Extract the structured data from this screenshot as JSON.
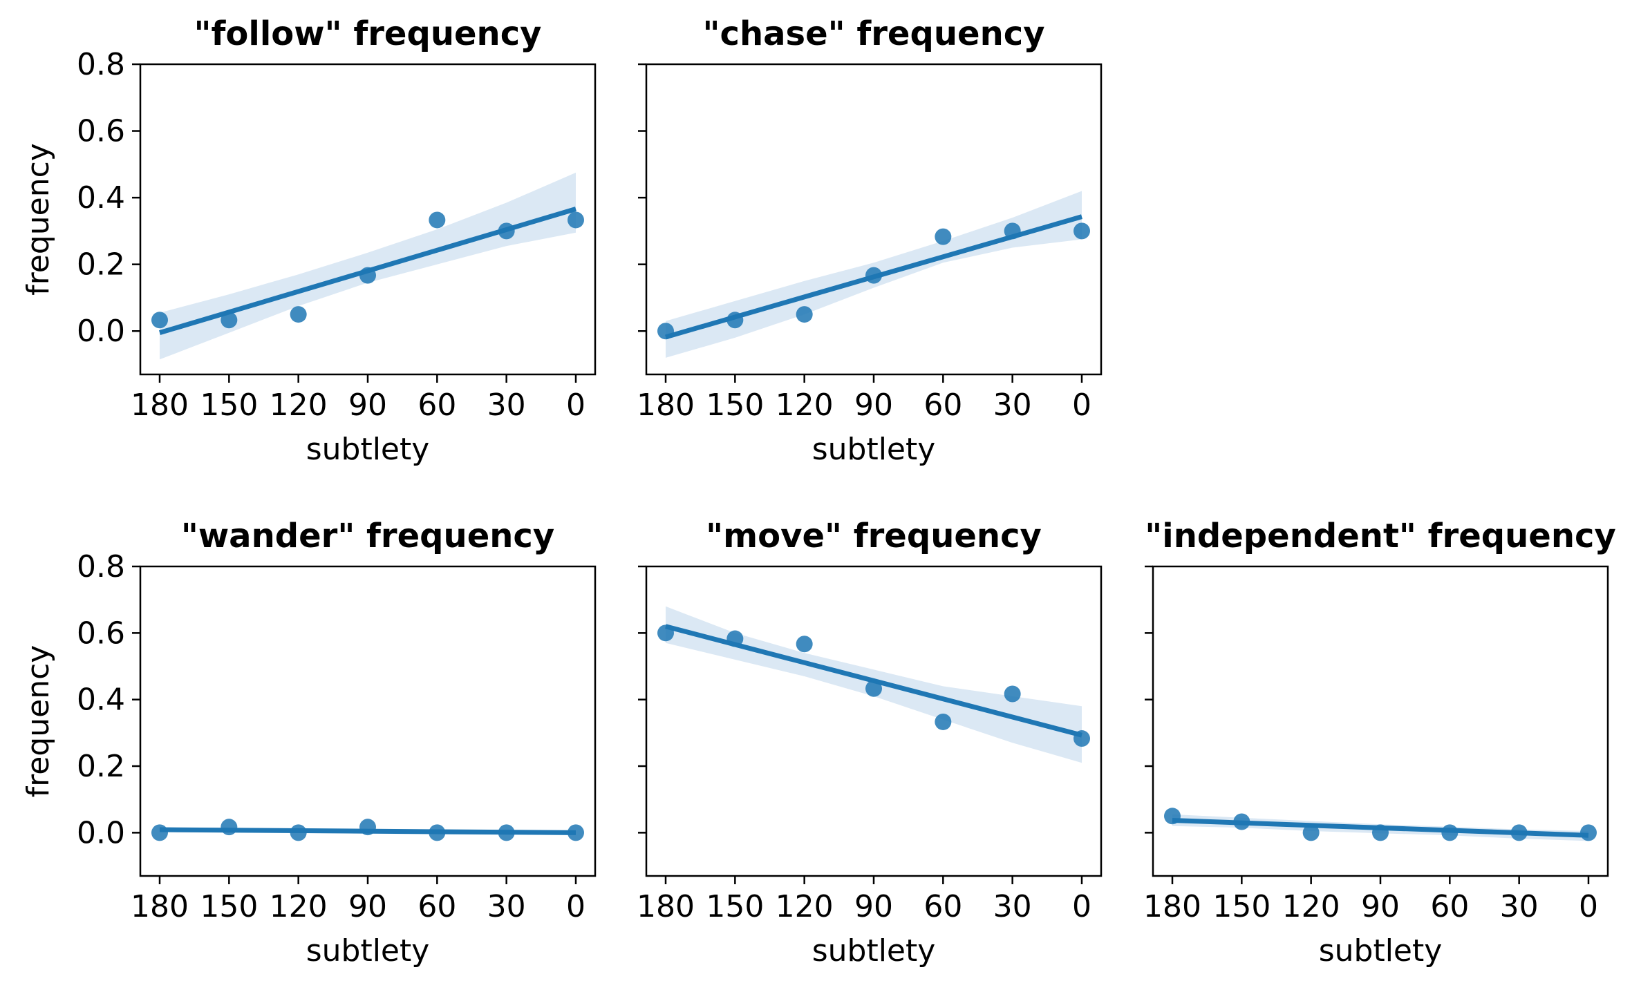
{
  "figure": {
    "accent_color": "#1f77b4",
    "band_color": "#dbe8f4"
  },
  "chart_data": [
    {
      "type": "scatter",
      "title": "\"follow\" frequency",
      "xlabel": "subtlety",
      "ylabel": "frequency",
      "x": [
        180,
        150,
        120,
        90,
        60,
        30,
        0
      ],
      "y": [
        0.033,
        0.033,
        0.05,
        0.167,
        0.333,
        0.3,
        0.333
      ],
      "x_axis": {
        "ticks": [
          "180",
          "150",
          "120",
          "90",
          "60",
          "30",
          "0"
        ],
        "reversed": true
      },
      "y_axis": {
        "ticks": [
          "0.0",
          "0.2",
          "0.4",
          "0.6",
          "0.8"
        ],
        "ylim": [
          -0.13,
          0.8
        ]
      },
      "fit": {
        "start": -0.005,
        "end": 0.366
      },
      "ci": {
        "upper": [
          0.055,
          0.11,
          0.17,
          0.235,
          0.305,
          0.385,
          0.475
        ],
        "lower": [
          -0.085,
          -0.005,
          0.075,
          0.145,
          0.2,
          0.255,
          0.295
        ]
      },
      "show_ytick_labels": true
    },
    {
      "type": "scatter",
      "title": "\"chase\" frequency",
      "xlabel": "subtlety",
      "ylabel": "",
      "x": [
        180,
        150,
        120,
        90,
        60,
        30,
        0
      ],
      "y": [
        0.0,
        0.033,
        0.05,
        0.167,
        0.283,
        0.3,
        0.3
      ],
      "x_axis": {
        "ticks": [
          "180",
          "150",
          "120",
          "90",
          "60",
          "30",
          "0"
        ],
        "reversed": true
      },
      "y_axis": {
        "ticks": [
          "0.0",
          "0.2",
          "0.4",
          "0.6",
          "0.8"
        ],
        "ylim": [
          -0.13,
          0.8
        ]
      },
      "fit": {
        "start": -0.018,
        "end": 0.343
      },
      "ci": {
        "upper": [
          0.03,
          0.09,
          0.15,
          0.205,
          0.27,
          0.34,
          0.42
        ],
        "lower": [
          -0.08,
          -0.02,
          0.05,
          0.13,
          0.205,
          0.25,
          0.275
        ]
      },
      "show_ytick_labels": false
    },
    {
      "type": "scatter",
      "title": "\"wander\" frequency",
      "xlabel": "subtlety",
      "ylabel": "frequency",
      "x": [
        180,
        150,
        120,
        90,
        60,
        30,
        0
      ],
      "y": [
        0.0,
        0.017,
        0.0,
        0.017,
        0.0,
        0.0,
        0.0
      ],
      "x_axis": {
        "ticks": [
          "180",
          "150",
          "120",
          "90",
          "60",
          "30",
          "0"
        ],
        "reversed": true
      },
      "y_axis": {
        "ticks": [
          "0.0",
          "0.2",
          "0.4",
          "0.6",
          "0.8"
        ],
        "ylim": [
          -0.13,
          0.8
        ]
      },
      "fit": {
        "start": 0.009,
        "end": 0.0
      },
      "ci": {
        "upper": [
          0.016,
          0.015,
          0.013,
          0.011,
          0.009,
          0.008,
          0.007
        ],
        "lower": [
          0.002,
          0.001,
          -0.001,
          -0.003,
          -0.005,
          -0.006,
          -0.007
        ]
      },
      "show_ytick_labels": true
    },
    {
      "type": "scatter",
      "title": "\"move\" frequency",
      "xlabel": "subtlety",
      "ylabel": "",
      "x": [
        180,
        150,
        120,
        90,
        60,
        30,
        0
      ],
      "y": [
        0.6,
        0.583,
        0.567,
        0.433,
        0.333,
        0.417,
        0.283
      ],
      "x_axis": {
        "ticks": [
          "180",
          "150",
          "120",
          "90",
          "60",
          "30",
          "0"
        ],
        "reversed": true
      },
      "y_axis": {
        "ticks": [
          "0.0",
          "0.2",
          "0.4",
          "0.6",
          "0.8"
        ],
        "ylim": [
          -0.13,
          0.8
        ]
      },
      "fit": {
        "start": 0.62,
        "end": 0.293
      },
      "ci": {
        "upper": [
          0.68,
          0.6,
          0.54,
          0.49,
          0.44,
          0.41,
          0.38
        ],
        "lower": [
          0.57,
          0.52,
          0.47,
          0.41,
          0.34,
          0.27,
          0.21
        ]
      },
      "show_ytick_labels": false
    },
    {
      "type": "scatter",
      "title": "\"independent\" frequency",
      "xlabel": "subtlety",
      "ylabel": "",
      "x": [
        180,
        150,
        120,
        90,
        60,
        30,
        0
      ],
      "y": [
        0.05,
        0.033,
        0.0,
        0.0,
        0.0,
        0.0,
        0.0
      ],
      "x_axis": {
        "ticks": [
          "180",
          "150",
          "120",
          "90",
          "60",
          "30",
          "0"
        ],
        "reversed": true
      },
      "y_axis": {
        "ticks": [
          "0.0",
          "0.2",
          "0.4",
          "0.6",
          "0.8"
        ],
        "ylim": [
          -0.13,
          0.8
        ]
      },
      "fit": {
        "start": 0.037,
        "end": -0.008
      },
      "ci": {
        "upper": [
          0.055,
          0.045,
          0.035,
          0.025,
          0.018,
          0.01,
          0.005
        ],
        "lower": [
          0.02,
          0.015,
          0.005,
          -0.002,
          -0.008,
          -0.018,
          -0.025
        ]
      },
      "show_ytick_labels": false
    }
  ]
}
